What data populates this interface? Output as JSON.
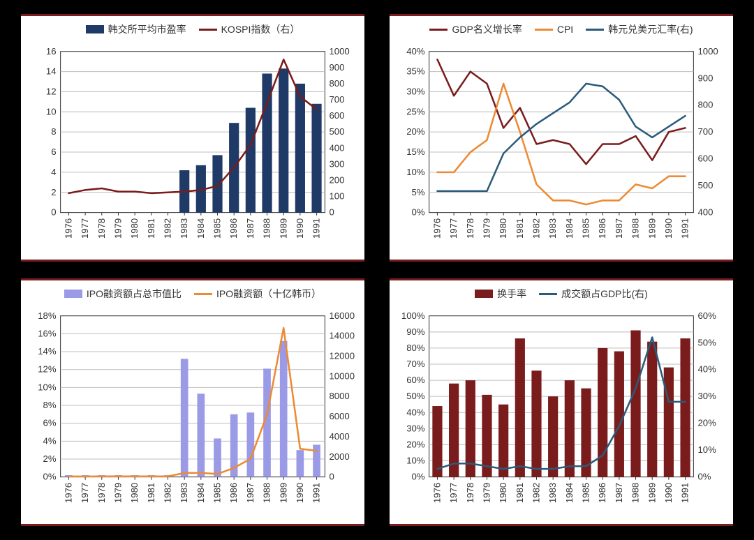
{
  "background": "#000000",
  "panel_border_color": "#7a1c1c",
  "years": [
    "1976",
    "1977",
    "1978",
    "1979",
    "1980",
    "1981",
    "1982",
    "1983",
    "1984",
    "1985",
    "1986",
    "1987",
    "1988",
    "1989",
    "1990",
    "1991"
  ],
  "colors": {
    "bar_navy": "#1f3a66",
    "line_darkred": "#7a1c1c",
    "line_orange": "#ed8a33",
    "line_steel": "#2b5a7a",
    "bar_lavender": "#9a9ae6",
    "bar_maroon": "#7a1c1c",
    "grid": "#bfbfbf",
    "axis": "#333333"
  },
  "chart1": {
    "legend": [
      {
        "type": "bar",
        "label": "韩交所平均市盈率",
        "color": "#1f3a66"
      },
      {
        "type": "line",
        "label": "KOSPI指数（右）",
        "color": "#7a1c1c"
      }
    ],
    "left_axis": {
      "min": 0,
      "max": 16,
      "step": 2
    },
    "right_axis": {
      "min": 0,
      "max": 1000,
      "step": 100
    },
    "bars": [
      null,
      null,
      null,
      null,
      null,
      null,
      null,
      4.2,
      4.7,
      5.7,
      8.9,
      10.4,
      13.8,
      14.3,
      12.8,
      10.8
    ],
    "line": [
      120,
      140,
      150,
      130,
      130,
      120,
      125,
      130,
      140,
      165,
      280,
      420,
      680,
      950,
      720,
      640
    ],
    "bar_width": 0.6
  },
  "chart2": {
    "legend": [
      {
        "type": "line",
        "label": "GDP名义增长率",
        "color": "#7a1c1c"
      },
      {
        "type": "line",
        "label": "CPI",
        "color": "#ed8a33"
      },
      {
        "type": "line",
        "label": "韩元兑美元汇率(右)",
        "color": "#2b5a7a"
      }
    ],
    "left_axis": {
      "min": 0,
      "max": 40,
      "step": 5,
      "suffix": "%"
    },
    "right_axis": {
      "min": 400,
      "max": 1000,
      "step": 100
    },
    "gdp": [
      38,
      29,
      35,
      32,
      21,
      26,
      17,
      18,
      17,
      12,
      17,
      17,
      19,
      13,
      20,
      21
    ],
    "cpi": [
      10,
      10,
      15,
      18,
      32,
      20,
      7,
      3,
      3,
      2,
      3,
      3,
      7,
      6,
      9,
      9
    ],
    "krw": [
      480,
      480,
      480,
      480,
      620,
      680,
      730,
      770,
      810,
      880,
      870,
      820,
      720,
      680,
      720,
      760
    ]
  },
  "chart3": {
    "legend": [
      {
        "type": "bar",
        "label": "IPO融资额占总市值比",
        "color": "#9a9ae6"
      },
      {
        "type": "line",
        "label": "IPO融资额（十亿韩币）",
        "color": "#ed8a33"
      }
    ],
    "left_axis": {
      "min": 0,
      "max": 18,
      "step": 2,
      "suffix": "%"
    },
    "right_axis": {
      "min": 0,
      "max": 16000,
      "step": 2000
    },
    "bars": [
      0.2,
      0.2,
      0.2,
      0.2,
      0.2,
      0.2,
      0.2,
      13.2,
      9.3,
      4.3,
      7.0,
      7.2,
      12.1,
      15.2,
      3.0,
      3.6
    ],
    "line": [
      50,
      50,
      60,
      60,
      60,
      60,
      60,
      400,
      400,
      300,
      900,
      1800,
      6200,
      14800,
      2800,
      2600
    ],
    "bar_width": 0.45
  },
  "chart4": {
    "legend": [
      {
        "type": "bar",
        "label": "换手率",
        "color": "#7a1c1c"
      },
      {
        "type": "line",
        "label": "成交额占GDP比(右)",
        "color": "#2b5a7a"
      }
    ],
    "left_axis": {
      "min": 0,
      "max": 100,
      "step": 10,
      "suffix": "%"
    },
    "right_axis": {
      "min": 0,
      "max": 60,
      "step": 10,
      "suffix": "%"
    },
    "bars": [
      44,
      58,
      60,
      51,
      45,
      86,
      66,
      50,
      60,
      55,
      80,
      78,
      91,
      84,
      68,
      86
    ],
    "line": [
      3,
      5,
      5,
      4,
      3,
      4,
      3,
      3,
      4,
      4,
      8,
      19,
      33,
      52,
      28,
      28
    ],
    "bar_width": 0.6
  }
}
